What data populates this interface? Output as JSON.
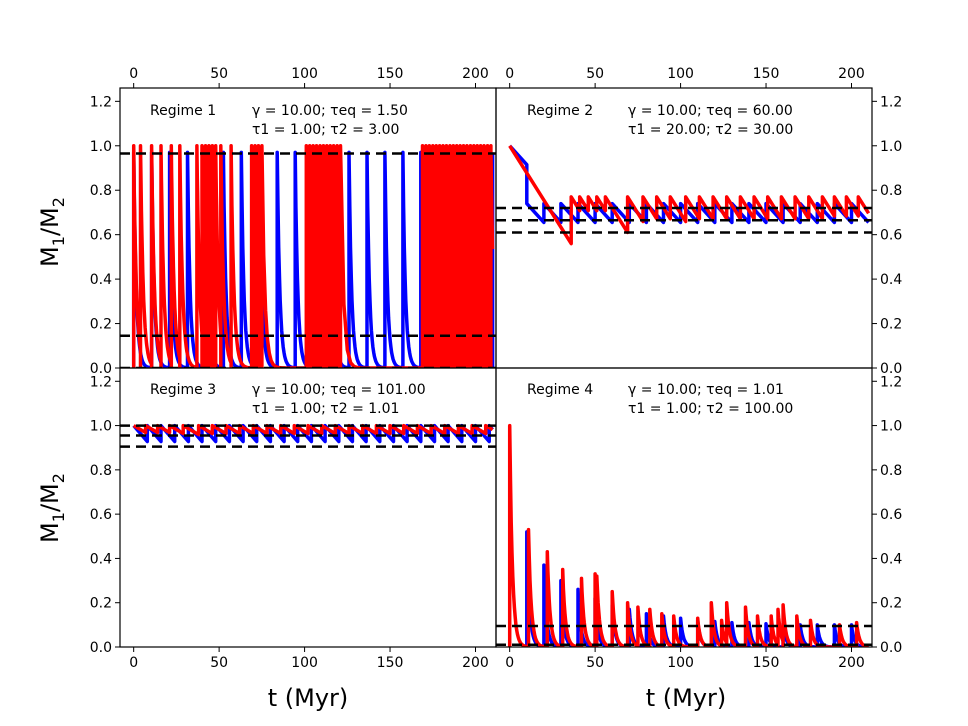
{
  "chart_data": {
    "type": "line",
    "xlabel": "t (Myr)",
    "ylabel_base": "M",
    "ylabel_sub1": "1",
    "ylabel_sub2": "2",
    "x_ticks": [
      "0",
      "50",
      "100",
      "150",
      "200"
    ],
    "y_ticks": [
      "0.0",
      "0.2",
      "0.4",
      "0.6",
      "0.8",
      "1.0",
      "1.2"
    ],
    "xlim": [
      -8,
      212
    ],
    "ylim": [
      0,
      1.26
    ],
    "series_colors": {
      "blue": "#0000ff",
      "red": "#ff0000",
      "threshold": "#000000"
    },
    "panels": [
      {
        "title": "Regime 1",
        "params_line1": "γ = 10.00; τeq = 1.50",
        "params_line2": "τ1 = 1.00; τ2 = 3.00",
        "gamma": 10.0,
        "tau_eq": 1.5,
        "tau1": 1.0,
        "tau2": 3.0,
        "thresholds": [
          0.965,
          0.145,
          0.0
        ],
        "blue": {
          "kind": "decay",
          "start": 0,
          "interval": 10.5,
          "peak": 0.97,
          "floor": 0.0,
          "tau": 1.5
        },
        "red": {
          "kind": "decay",
          "floor": 0.0,
          "tau": 1.6,
          "peak": 1.0,
          "spikes": [
            0,
            4,
            10.5,
            16,
            22,
            27,
            37,
            40,
            42,
            44,
            46,
            48,
            51,
            57,
            69,
            71,
            73,
            75,
            101,
            103,
            105,
            107,
            109,
            111,
            113,
            115,
            117,
            119,
            121,
            169,
            171,
            173,
            175,
            177,
            179,
            181,
            183,
            185,
            187,
            189,
            191,
            193,
            195,
            197,
            199,
            201,
            203,
            205,
            207,
            209
          ]
        }
      },
      {
        "title": "Regime 2",
        "params_line1": "γ = 10.00; τeq = 60.00",
        "params_line2": "τ1 = 20.00; τ2 = 30.00",
        "gamma": 10.0,
        "tau_eq": 60.0,
        "tau1": 20.0,
        "tau2": 30.0,
        "thresholds": [
          0.72,
          0.665,
          0.61
        ],
        "blue": {
          "kind": "sawtooth",
          "start": 0,
          "start_value": 1.0,
          "resets": [
            10,
            20,
            30,
            40,
            50,
            60,
            70,
            80,
            90,
            100,
            110,
            120,
            130,
            140,
            150,
            160,
            170,
            180,
            190,
            200,
            210
          ],
          "reset_value": 0.74,
          "slope": -0.0085,
          "floor": 0.61
        },
        "red": {
          "kind": "sawtooth",
          "start": 0,
          "start_value": 1.0,
          "resets": [
            36,
            41,
            46,
            51,
            56,
            69,
            78,
            86,
            94,
            103,
            111,
            119,
            127,
            135,
            143,
            151,
            159,
            167,
            175,
            183,
            190,
            197,
            204
          ],
          "reset_value": 0.77,
          "slope": -0.0123,
          "floor": 0.56
        }
      },
      {
        "title": "Regime 3",
        "params_line1": "γ = 10.00; τeq = 101.00",
        "params_line2": "τ1 = 1.00; τ2 = 1.01",
        "gamma": 10.0,
        "tau_eq": 101.0,
        "tau1": 1.0,
        "tau2": 1.01,
        "thresholds": [
          1.0,
          0.955,
          0.905
        ],
        "blue": {
          "kind": "sawtooth",
          "start": 0,
          "start_value": 1.0,
          "resets": [
            8,
            16,
            24,
            32,
            40,
            48,
            56,
            64,
            72,
            80,
            88,
            96,
            104,
            112,
            120,
            128,
            136,
            144,
            152,
            160,
            168,
            176,
            184,
            192,
            200,
            208
          ],
          "reset_value": 1.0,
          "slope": -0.009,
          "floor": 0.905
        },
        "red": {
          "kind": "sawtooth",
          "start": 0,
          "start_value": 1.0,
          "resets": [
            7,
            14,
            21,
            29,
            38,
            46,
            54,
            62,
            70,
            78,
            86,
            94,
            102,
            110,
            118,
            126,
            134,
            142,
            150,
            158,
            166,
            174,
            182,
            190,
            198,
            206
          ],
          "reset_value": 1.0,
          "slope": -0.0045,
          "floor": 0.84
        }
      },
      {
        "title": "Regime 4",
        "params_line1": "γ = 10.00; τeq = 1.01",
        "params_line2": "τ1 = 1.00; τ2 = 100.00",
        "gamma": 10.0,
        "tau_eq": 1.01,
        "tau1": 1.0,
        "tau2": 100.0,
        "thresholds": [
          0.095,
          0.01
        ],
        "blue": {
          "kind": "decay",
          "start": 0,
          "floor": 0.0,
          "tau": 1.6,
          "spikes": [
            10,
            20,
            30,
            40,
            50,
            60,
            70,
            80,
            90,
            100,
            110,
            120,
            130,
            140,
            150,
            160,
            170,
            180,
            190,
            200
          ],
          "peaks": [
            0.52,
            0.37,
            0.3,
            0.26,
            0.22,
            0.19,
            0.17,
            0.15,
            0.14,
            0.13,
            0.12,
            0.115,
            0.11,
            0.11,
            0.105,
            0.105,
            0.1,
            0.1,
            0.1,
            0.1
          ]
        },
        "red": {
          "kind": "decay",
          "start_value": 1.0,
          "floor": 0.0,
          "tau": 1.6,
          "spikes": [
            0,
            11,
            22,
            31,
            42,
            50,
            51,
            60,
            69,
            75,
            82,
            89,
            96,
            110,
            118,
            124,
            127,
            138,
            145,
            153,
            157,
            160,
            168,
            176,
            193,
            203
          ],
          "peaks": [
            1.0,
            0.53,
            0.43,
            0.35,
            0.31,
            0.33,
            0.32,
            0.25,
            0.2,
            0.18,
            0.17,
            0.15,
            0.14,
            0.13,
            0.2,
            0.12,
            0.2,
            0.18,
            0.14,
            0.14,
            0.17,
            0.19,
            0.14,
            0.12,
            0.1,
            0.11
          ]
        }
      }
    ]
  }
}
